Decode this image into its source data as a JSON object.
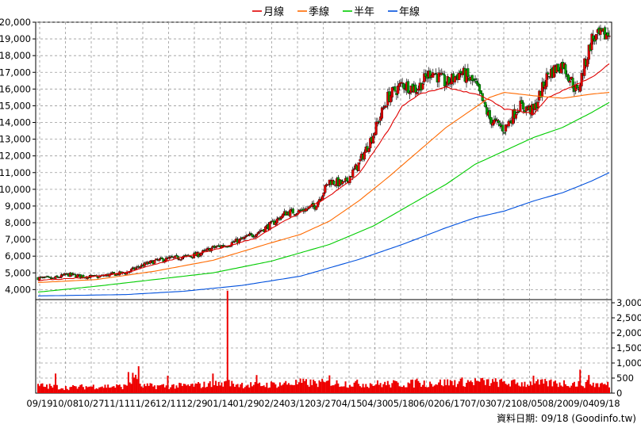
{
  "legend": [
    {
      "label": "月線",
      "color": "#e00000"
    },
    {
      "label": "季線",
      "color": "#ff6a00"
    },
    {
      "label": "半年",
      "color": "#00cc00"
    },
    {
      "label": "年線",
      "color": "#0050dd"
    }
  ],
  "footer": "資料日期: 09/18  (Goodinfo.tw)",
  "chart_data": [
    {
      "type": "candlestick",
      "ylim": [
        3400,
        20000
      ],
      "price_ticks": [
        "4,000",
        "5,000",
        "6,000",
        "7,000",
        "8,000",
        "9,000",
        "10,000",
        "11,000",
        "12,000",
        "13,000",
        "14,000",
        "15,000",
        "16,000",
        "17,000",
        "18,000",
        "19,000",
        "20,000"
      ],
      "x_labels": [
        "09/19",
        "10/08",
        "10/27",
        "11/11",
        "11/26",
        "12/11",
        "12/29",
        "01/14",
        "01/29",
        "02/24",
        "03/12",
        "03/27",
        "04/15",
        "04/30",
        "05/18",
        "06/02",
        "06/17",
        "07/03",
        "07/21",
        "08/05",
        "08/20",
        "09/04",
        "09/18"
      ],
      "price_points": [
        [
          0,
          4700
        ],
        [
          10,
          4650
        ],
        [
          20,
          4900
        ],
        [
          30,
          4800
        ],
        [
          40,
          4750
        ],
        [
          50,
          4900
        ],
        [
          60,
          5000
        ],
        [
          70,
          5400
        ],
        [
          80,
          5700
        ],
        [
          90,
          5850
        ],
        [
          100,
          5950
        ],
        [
          110,
          6100
        ],
        [
          120,
          6500
        ],
        [
          130,
          6700
        ],
        [
          140,
          7000
        ],
        [
          150,
          7400
        ],
        [
          160,
          7900
        ],
        [
          170,
          8600
        ],
        [
          180,
          8700
        ],
        [
          190,
          9000
        ],
        [
          200,
          10500
        ],
        [
          210,
          10300
        ],
        [
          220,
          11500
        ],
        [
          230,
          13300
        ],
        [
          240,
          15500
        ],
        [
          250,
          16300
        ],
        [
          260,
          16000
        ],
        [
          270,
          17100
        ],
        [
          280,
          16300
        ],
        [
          290,
          17000
        ],
        [
          300,
          16300
        ],
        [
          310,
          14200
        ],
        [
          320,
          13600
        ],
        [
          330,
          15000
        ],
        [
          340,
          14700
        ],
        [
          350,
          16900
        ],
        [
          360,
          17500
        ],
        [
          370,
          15800
        ],
        [
          380,
          19000
        ],
        [
          392,
          19300
        ]
      ],
      "series": [
        {
          "name": "月線",
          "color": "#e00000",
          "points": [
            [
              0,
              4550
            ],
            [
              30,
              4700
            ],
            [
              60,
              5000
            ],
            [
              90,
              5750
            ],
            [
              120,
              6350
            ],
            [
              150,
              7100
            ],
            [
              165,
              7900
            ],
            [
              180,
              8600
            ],
            [
              200,
              9600
            ],
            [
              220,
              10900
            ],
            [
              240,
              13500
            ],
            [
              250,
              15000
            ],
            [
              262,
              15700
            ],
            [
              280,
              16100
            ],
            [
              300,
              15700
            ],
            [
              310,
              15350
            ],
            [
              320,
              14800
            ],
            [
              330,
              14700
            ],
            [
              340,
              14500
            ],
            [
              350,
              15500
            ],
            [
              365,
              16100
            ],
            [
              380,
              16700
            ],
            [
              392,
              17500
            ]
          ]
        },
        {
          "name": "季線",
          "color": "#ff6a00",
          "points": [
            [
              0,
              4420
            ],
            [
              40,
              4600
            ],
            [
              80,
              5100
            ],
            [
              120,
              5750
            ],
            [
              160,
              6800
            ],
            [
              180,
              7300
            ],
            [
              200,
              8100
            ],
            [
              220,
              9300
            ],
            [
              240,
              10700
            ],
            [
              260,
              12200
            ],
            [
              280,
              13700
            ],
            [
              300,
              14900
            ],
            [
              310,
              15500
            ],
            [
              320,
              15800
            ],
            [
              340,
              15600
            ],
            [
              360,
              15450
            ],
            [
              380,
              15700
            ],
            [
              392,
              15800
            ]
          ]
        },
        {
          "name": "半年",
          "color": "#00cc00",
          "points": [
            [
              0,
              3850
            ],
            [
              40,
              4200
            ],
            [
              80,
              4600
            ],
            [
              120,
              5000
            ],
            [
              160,
              5700
            ],
            [
              200,
              6700
            ],
            [
              230,
              7800
            ],
            [
              260,
              9300
            ],
            [
              280,
              10300
            ],
            [
              300,
              11500
            ],
            [
              320,
              12300
            ],
            [
              340,
              13100
            ],
            [
              360,
              13700
            ],
            [
              380,
              14600
            ],
            [
              392,
              15200
            ]
          ]
        },
        {
          "name": "年線",
          "color": "#0050dd",
          "points": [
            [
              0,
              3620
            ],
            [
              60,
              3700
            ],
            [
              100,
              3900
            ],
            [
              140,
              4250
            ],
            [
              180,
              4800
            ],
            [
              220,
              5800
            ],
            [
              250,
              6700
            ],
            [
              280,
              7700
            ],
            [
              300,
              8300
            ],
            [
              320,
              8700
            ],
            [
              340,
              9300
            ],
            [
              360,
              9800
            ],
            [
              380,
              10500
            ],
            [
              392,
              11000
            ]
          ]
        }
      ]
    },
    {
      "type": "bar",
      "ylim": [
        0,
        3000
      ],
      "y_ticks": [
        "0",
        "500",
        "1,000",
        "1,500",
        "2,000",
        "2,500",
        "3,000"
      ],
      "volume_profile": [
        [
          0,
          250
        ],
        [
          20,
          180
        ],
        [
          40,
          230
        ],
        [
          60,
          220
        ],
        [
          69,
          700
        ],
        [
          70,
          230
        ],
        [
          100,
          240
        ],
        [
          130,
          320
        ],
        [
          150,
          260
        ],
        [
          180,
          340
        ],
        [
          210,
          320
        ],
        [
          240,
          300
        ],
        [
          270,
          330
        ],
        [
          300,
          380
        ],
        [
          330,
          320
        ],
        [
          360,
          330
        ],
        [
          392,
          280
        ]
      ],
      "volume_spikes": [
        [
          12,
          650
        ],
        [
          62,
          700
        ],
        [
          89,
          580
        ],
        [
          120,
          650
        ],
        [
          130,
          3400
        ],
        [
          150,
          600
        ],
        [
          200,
          590
        ],
        [
          260,
          480
        ],
        [
          340,
          580
        ],
        [
          372,
          780
        ],
        [
          378,
          600
        ]
      ]
    }
  ]
}
